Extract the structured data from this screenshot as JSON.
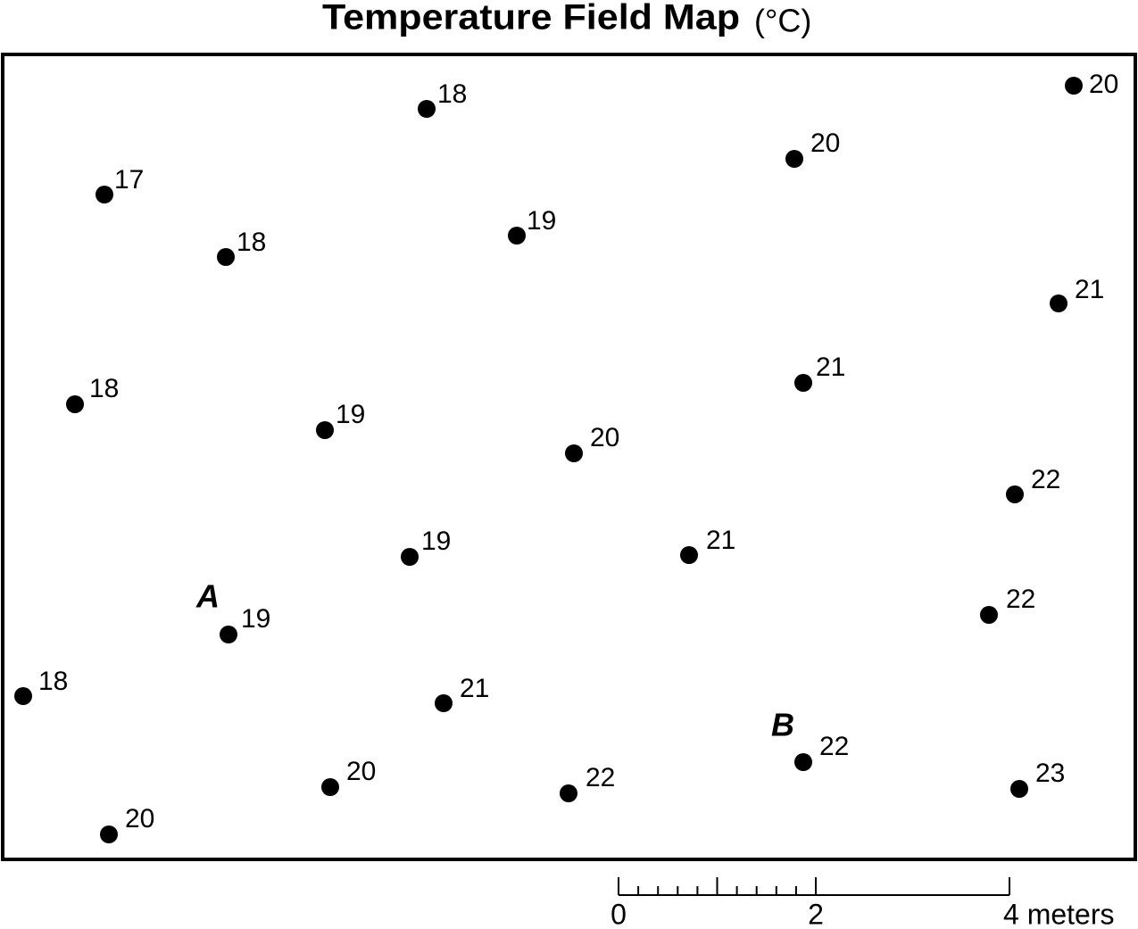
{
  "title": "Temperature Field Map",
  "unit": "(°C)",
  "points": [
    18,
    20,
    20,
    17,
    18,
    19,
    21,
    21,
    18,
    19,
    20,
    22,
    19,
    21,
    22,
    19,
    18,
    21,
    22,
    20,
    22,
    23,
    20
  ],
  "markers": [
    "A",
    "B"
  ],
  "scale": {
    "labels": [
      "0",
      "2",
      "4 meters"
    ]
  }
}
